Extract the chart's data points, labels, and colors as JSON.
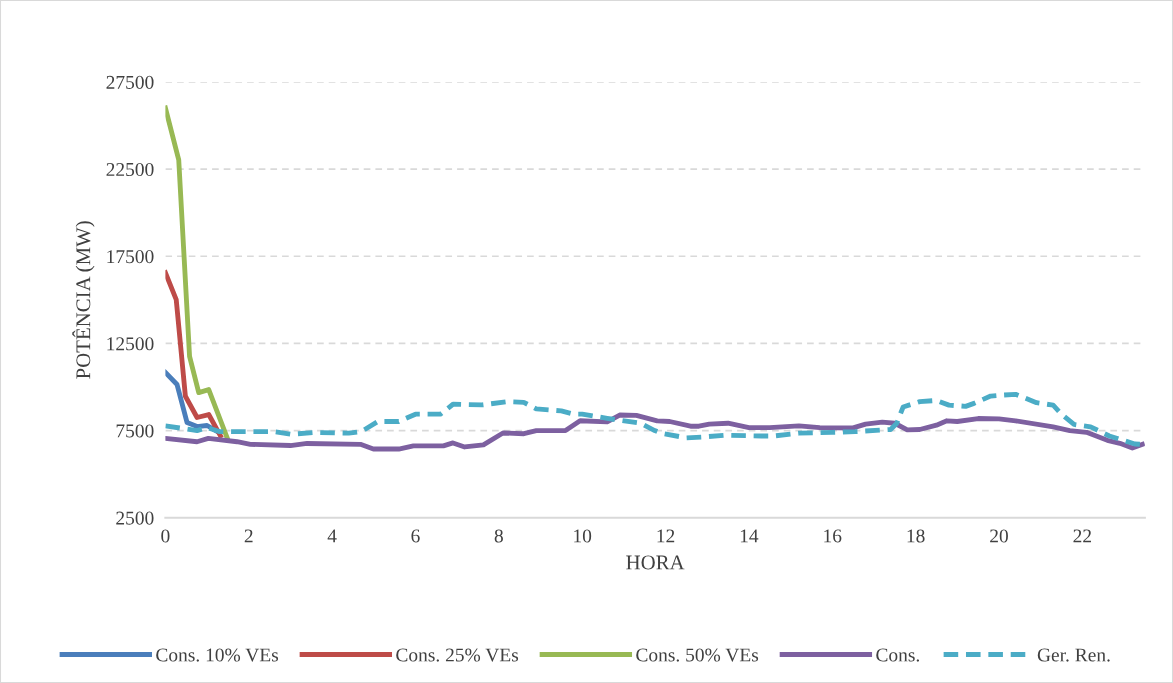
{
  "chart_data": {
    "type": "line",
    "xlabel": "HORA",
    "ylabel": "POTÊNCIA (MW)",
    "xlim": [
      0,
      23.5
    ],
    "xticks": [
      0,
      2,
      4,
      6,
      8,
      10,
      12,
      14,
      16,
      18,
      20,
      22
    ],
    "ylim": [
      2500,
      27500
    ],
    "yticks": [
      2500,
      7500,
      12500,
      17500,
      22500,
      27500
    ],
    "grid": "y",
    "legend": "bottom",
    "series": [
      {
        "name": "Cons. 10% VEs",
        "color": "#4a7ebb",
        "line_style": "solid",
        "x": [
          0,
          0.28,
          0.52,
          0.76,
          1.0,
          1.24
        ],
        "values": [
          10830,
          10140,
          7960,
          7730,
          7790,
          7450
        ]
      },
      {
        "name": "Cons. 25% VEs",
        "color": "#be4b48",
        "line_style": "solid",
        "x": [
          0,
          0.26,
          0.48,
          0.76,
          1.04,
          1.32
        ],
        "values": [
          16560,
          15010,
          9470,
          8250,
          8420,
          7200
        ]
      },
      {
        "name": "Cons. 50% VEs",
        "color": "#98b954",
        "line_style": "solid",
        "x": [
          0,
          0.32,
          0.58,
          0.8,
          1.04,
          1.48
        ],
        "values": [
          26010,
          23030,
          11760,
          9680,
          9850,
          7100
        ]
      },
      {
        "name": "Cons.",
        "color": "#7d60a0",
        "line_style": "solid",
        "x": [
          0,
          0.76,
          1.03,
          1.72,
          2.04,
          3.0,
          3.4,
          4.68,
          4.99,
          5.6,
          5.95,
          6.67,
          6.9,
          7.18,
          7.63,
          8.1,
          8.6,
          8.9,
          9.6,
          9.95,
          10.6,
          10.9,
          11.3,
          11.8,
          12.1,
          12.6,
          12.8,
          13.05,
          13.5,
          14.0,
          14.5,
          15.2,
          15.7,
          16.5,
          16.8,
          17.2,
          17.5,
          17.8,
          18.1,
          18.5,
          18.75,
          19.0,
          19.5,
          20.0,
          20.4,
          21.3,
          21.7,
          22.1,
          22.6,
          22.9,
          23.2,
          23.44
        ],
        "values": [
          7050,
          6860,
          7050,
          6860,
          6710,
          6640,
          6760,
          6710,
          6440,
          6440,
          6620,
          6620,
          6790,
          6560,
          6680,
          7360,
          7320,
          7500,
          7500,
          8060,
          8000,
          8390,
          8370,
          8060,
          8020,
          7750,
          7750,
          7870,
          7920,
          7670,
          7670,
          7770,
          7670,
          7650,
          7870,
          7980,
          7920,
          7540,
          7560,
          7810,
          8060,
          8020,
          8190,
          8170,
          8060,
          7710,
          7500,
          7400,
          6940,
          6770,
          6500,
          6710
        ]
      },
      {
        "name": "Ger. Ren.",
        "color": "#4bacc6",
        "line_style": "dashed",
        "x": [
          0,
          0.76,
          1.0,
          1.3,
          2.0,
          2.6,
          3.0,
          3.6,
          4.4,
          4.7,
          5.1,
          5.6,
          6.0,
          6.6,
          6.9,
          7.6,
          8.2,
          8.6,
          8.9,
          9.5,
          9.8,
          10.0,
          10.6,
          11.4,
          11.74,
          11.9,
          12.5,
          12.9,
          13.4,
          14.3,
          14.6,
          15.2,
          16.0,
          16.55,
          17.4,
          17.55,
          17.7,
          18.1,
          18.5,
          18.8,
          19.2,
          19.4,
          19.8,
          20.1,
          20.4,
          20.9,
          21.3,
          21.5,
          21.8,
          22.2,
          22.65,
          23.26,
          23.44
        ],
        "values": [
          7770,
          7500,
          7670,
          7440,
          7440,
          7440,
          7290,
          7390,
          7350,
          7440,
          8020,
          8020,
          8440,
          8440,
          9010,
          8970,
          9160,
          9120,
          8740,
          8630,
          8440,
          8440,
          8200,
          7920,
          7500,
          7350,
          7080,
          7130,
          7230,
          7190,
          7190,
          7350,
          7400,
          7440,
          7560,
          7920,
          8850,
          9160,
          9230,
          8960,
          8890,
          9060,
          9480,
          9540,
          9580,
          9100,
          8960,
          8440,
          7850,
          7710,
          7190,
          6730,
          6710
        ]
      }
    ]
  }
}
